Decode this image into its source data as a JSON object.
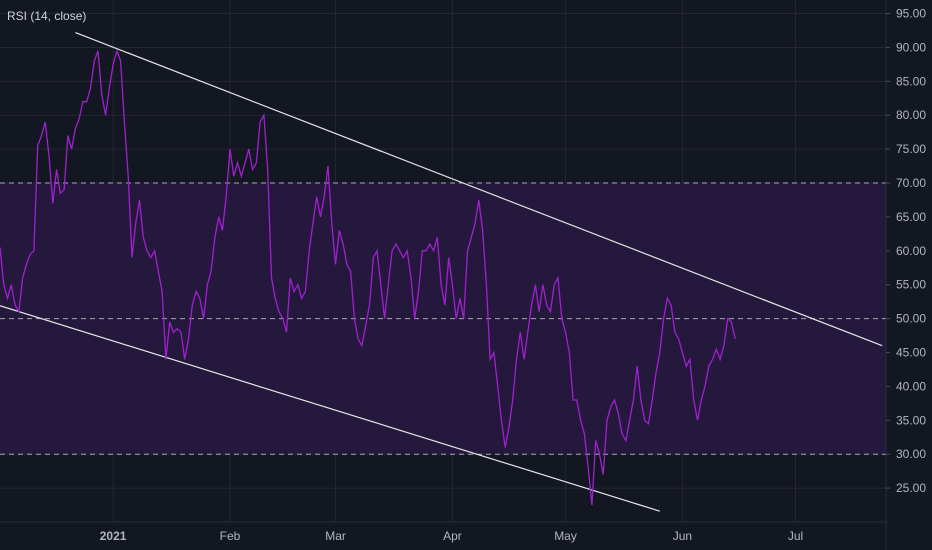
{
  "indicator": {
    "label": "RSI (14, close)"
  },
  "colors": {
    "background": "#131722",
    "grid": "#242733",
    "rsi_line": "#a020d0",
    "band_fill": "#24193d",
    "levels": "#c0c2c8",
    "trendlines": "#e6e6e6",
    "axis_text": "#b2b5be"
  },
  "chart_data": {
    "type": "line",
    "title": "RSI (14, close)",
    "xlabel": "",
    "ylabel": "",
    "ylim": [
      20,
      97
    ],
    "y_ticks": [
      "95.00",
      "90.00",
      "85.00",
      "80.00",
      "75.00",
      "70.00",
      "65.00",
      "60.00",
      "55.00",
      "50.00",
      "45.00",
      "40.00",
      "35.00",
      "30.00",
      "25.00"
    ],
    "x_ticks": [
      {
        "label": "2021",
        "date": "2021-01-01",
        "bold": true
      },
      {
        "label": "Feb",
        "date": "2021-02-01"
      },
      {
        "label": "Mar",
        "date": "2021-03-01"
      },
      {
        "label": "Apr",
        "date": "2021-04-01"
      },
      {
        "label": "May",
        "date": "2021-05-01"
      },
      {
        "label": "Jun",
        "date": "2021-06-01"
      },
      {
        "label": "Jul",
        "date": "2021-07-01"
      }
    ],
    "x_range": [
      "2020-12-02",
      "2021-07-25"
    ],
    "levels": {
      "upper": 70,
      "middle": 50,
      "lower": 30
    },
    "grid": true,
    "trendlines": [
      {
        "name": "upper",
        "points": [
          [
            "2020-12-22",
            92.2
          ],
          [
            "2021-07-24",
            46.0
          ]
        ]
      },
      {
        "name": "lower",
        "points": [
          [
            "2020-12-02",
            51.9
          ],
          [
            "2021-05-26",
            21.6
          ]
        ]
      }
    ],
    "series": [
      {
        "type": "line",
        "points": [
          [
            "2020-12-02",
            60.5
          ],
          [
            "2020-12-03",
            55
          ],
          [
            "2020-12-04",
            53
          ],
          [
            "2020-12-05",
            55
          ],
          [
            "2020-12-06",
            52
          ],
          [
            "2020-12-07",
            51
          ],
          [
            "2020-12-08",
            56
          ],
          [
            "2020-12-09",
            58
          ],
          [
            "2020-12-10",
            59.5
          ],
          [
            "2020-12-11",
            60
          ],
          [
            "2020-12-12",
            75.5
          ],
          [
            "2020-12-13",
            77
          ],
          [
            "2020-12-14",
            79
          ],
          [
            "2020-12-15",
            74
          ],
          [
            "2020-12-16",
            67
          ],
          [
            "2020-12-17",
            72
          ],
          [
            "2020-12-18",
            68.5
          ],
          [
            "2020-12-19",
            69
          ],
          [
            "2020-12-20",
            77
          ],
          [
            "2020-12-21",
            75
          ],
          [
            "2020-12-22",
            78
          ],
          [
            "2020-12-23",
            79.5
          ],
          [
            "2020-12-24",
            82
          ],
          [
            "2020-12-25",
            82
          ],
          [
            "2020-12-26",
            84
          ],
          [
            "2020-12-27",
            88
          ],
          [
            "2020-12-28",
            89.5
          ],
          [
            "2020-12-29",
            83
          ],
          [
            "2020-12-30",
            80
          ],
          [
            "2020-12-31",
            84
          ],
          [
            "2021-01-01",
            87.5
          ],
          [
            "2021-01-02",
            89.5
          ],
          [
            "2021-01-03",
            88
          ],
          [
            "2021-01-04",
            79
          ],
          [
            "2021-01-05",
            71
          ],
          [
            "2021-01-06",
            59
          ],
          [
            "2021-01-07",
            64
          ],
          [
            "2021-01-08",
            67.5
          ],
          [
            "2021-01-09",
            62
          ],
          [
            "2021-01-10",
            60
          ],
          [
            "2021-01-11",
            59
          ],
          [
            "2021-01-12",
            60
          ],
          [
            "2021-01-13",
            57
          ],
          [
            "2021-01-14",
            54
          ],
          [
            "2021-01-15",
            44
          ],
          [
            "2021-01-16",
            49.5
          ],
          [
            "2021-01-17",
            48
          ],
          [
            "2021-01-18",
            48.5
          ],
          [
            "2021-01-19",
            48
          ],
          [
            "2021-01-20",
            44
          ],
          [
            "2021-01-21",
            47
          ],
          [
            "2021-01-22",
            52
          ],
          [
            "2021-01-23",
            54
          ],
          [
            "2021-01-24",
            53
          ],
          [
            "2021-01-25",
            50
          ],
          [
            "2021-01-26",
            55
          ],
          [
            "2021-01-27",
            57
          ],
          [
            "2021-01-28",
            62
          ],
          [
            "2021-01-29",
            65
          ],
          [
            "2021-01-30",
            63
          ],
          [
            "2021-01-31",
            68
          ],
          [
            "2021-02-01",
            75
          ],
          [
            "2021-02-02",
            71
          ],
          [
            "2021-02-03",
            73
          ],
          [
            "2021-02-04",
            71
          ],
          [
            "2021-02-05",
            73
          ],
          [
            "2021-02-06",
            75
          ],
          [
            "2021-02-07",
            72
          ],
          [
            "2021-02-08",
            73
          ],
          [
            "2021-02-09",
            79
          ],
          [
            "2021-02-10",
            80
          ],
          [
            "2021-02-11",
            72
          ],
          [
            "2021-02-12",
            56
          ],
          [
            "2021-02-13",
            53
          ],
          [
            "2021-02-14",
            51
          ],
          [
            "2021-02-15",
            50
          ],
          [
            "2021-02-16",
            48
          ],
          [
            "2021-02-17",
            56
          ],
          [
            "2021-02-18",
            54
          ],
          [
            "2021-02-19",
            55
          ],
          [
            "2021-02-20",
            53
          ],
          [
            "2021-02-21",
            54
          ],
          [
            "2021-02-22",
            60
          ],
          [
            "2021-02-23",
            64
          ],
          [
            "2021-02-24",
            68
          ],
          [
            "2021-02-25",
            65
          ],
          [
            "2021-02-26",
            68
          ],
          [
            "2021-02-27",
            72.5
          ],
          [
            "2021-02-28",
            64
          ],
          [
            "2021-03-01",
            58
          ],
          [
            "2021-03-02",
            63
          ],
          [
            "2021-03-03",
            61
          ],
          [
            "2021-03-04",
            58
          ],
          [
            "2021-03-05",
            57
          ],
          [
            "2021-03-06",
            50
          ],
          [
            "2021-03-07",
            47
          ],
          [
            "2021-03-08",
            46
          ],
          [
            "2021-03-09",
            49
          ],
          [
            "2021-03-10",
            52
          ],
          [
            "2021-03-11",
            59
          ],
          [
            "2021-03-12",
            60
          ],
          [
            "2021-03-13",
            55
          ],
          [
            "2021-03-14",
            50
          ],
          [
            "2021-03-15",
            55
          ],
          [
            "2021-03-16",
            60
          ],
          [
            "2021-03-17",
            61
          ],
          [
            "2021-03-18",
            60
          ],
          [
            "2021-03-19",
            59
          ],
          [
            "2021-03-20",
            60
          ],
          [
            "2021-03-21",
            56
          ],
          [
            "2021-03-22",
            50
          ],
          [
            "2021-03-23",
            54
          ],
          [
            "2021-03-24",
            60
          ],
          [
            "2021-03-25",
            60
          ],
          [
            "2021-03-26",
            61
          ],
          [
            "2021-03-27",
            60
          ],
          [
            "2021-03-28",
            62
          ],
          [
            "2021-03-29",
            55
          ],
          [
            "2021-03-30",
            52
          ],
          [
            "2021-03-31",
            59
          ],
          [
            "2021-04-01",
            55
          ],
          [
            "2021-04-02",
            50
          ],
          [
            "2021-04-03",
            53
          ],
          [
            "2021-04-04",
            50
          ],
          [
            "2021-04-05",
            60
          ],
          [
            "2021-04-06",
            62
          ],
          [
            "2021-04-07",
            64
          ],
          [
            "2021-04-08",
            67.5
          ],
          [
            "2021-04-09",
            63
          ],
          [
            "2021-04-10",
            55
          ],
          [
            "2021-04-11",
            44
          ],
          [
            "2021-04-12",
            45
          ],
          [
            "2021-04-13",
            40
          ],
          [
            "2021-04-14",
            35
          ],
          [
            "2021-04-15",
            31
          ],
          [
            "2021-04-16",
            34
          ],
          [
            "2021-04-17",
            38
          ],
          [
            "2021-04-18",
            44
          ],
          [
            "2021-04-19",
            48
          ],
          [
            "2021-04-20",
            44
          ],
          [
            "2021-04-21",
            48
          ],
          [
            "2021-04-22",
            52
          ],
          [
            "2021-04-23",
            55
          ],
          [
            "2021-04-24",
            51
          ],
          [
            "2021-04-25",
            55
          ],
          [
            "2021-04-26",
            52
          ],
          [
            "2021-04-27",
            51
          ],
          [
            "2021-04-28",
            55
          ],
          [
            "2021-04-29",
            56
          ],
          [
            "2021-04-30",
            50
          ],
          [
            "2021-05-01",
            48
          ],
          [
            "2021-05-02",
            45
          ],
          [
            "2021-05-03",
            38
          ],
          [
            "2021-05-04",
            38
          ],
          [
            "2021-05-05",
            35
          ],
          [
            "2021-05-06",
            33
          ],
          [
            "2021-05-07",
            28
          ],
          [
            "2021-05-08",
            22.5
          ],
          [
            "2021-05-09",
            32
          ],
          [
            "2021-05-10",
            30
          ],
          [
            "2021-05-11",
            27
          ],
          [
            "2021-05-12",
            35
          ],
          [
            "2021-05-13",
            37
          ],
          [
            "2021-05-14",
            38
          ],
          [
            "2021-05-15",
            36
          ],
          [
            "2021-05-16",
            33
          ],
          [
            "2021-05-17",
            32
          ],
          [
            "2021-05-18",
            35
          ],
          [
            "2021-05-19",
            38
          ],
          [
            "2021-05-20",
            43
          ],
          [
            "2021-05-21",
            38
          ],
          [
            "2021-05-22",
            35
          ],
          [
            "2021-05-23",
            34.5
          ],
          [
            "2021-05-24",
            38
          ],
          [
            "2021-05-25",
            42
          ],
          [
            "2021-05-26",
            45
          ],
          [
            "2021-05-27",
            50
          ],
          [
            "2021-05-28",
            53
          ],
          [
            "2021-05-29",
            52
          ],
          [
            "2021-05-30",
            48
          ],
          [
            "2021-05-31",
            47
          ],
          [
            "2021-06-01",
            45
          ],
          [
            "2021-06-02",
            43
          ],
          [
            "2021-06-03",
            44
          ],
          [
            "2021-06-04",
            38
          ],
          [
            "2021-06-05",
            35
          ],
          [
            "2021-06-06",
            38
          ],
          [
            "2021-06-07",
            40
          ],
          [
            "2021-06-08",
            43
          ],
          [
            "2021-06-09",
            44
          ],
          [
            "2021-06-10",
            45.5
          ],
          [
            "2021-06-11",
            44
          ],
          [
            "2021-06-12",
            46
          ],
          [
            "2021-06-13",
            50
          ],
          [
            "2021-06-14",
            49.5
          ],
          [
            "2021-06-15",
            47
          ]
        ]
      }
    ]
  }
}
